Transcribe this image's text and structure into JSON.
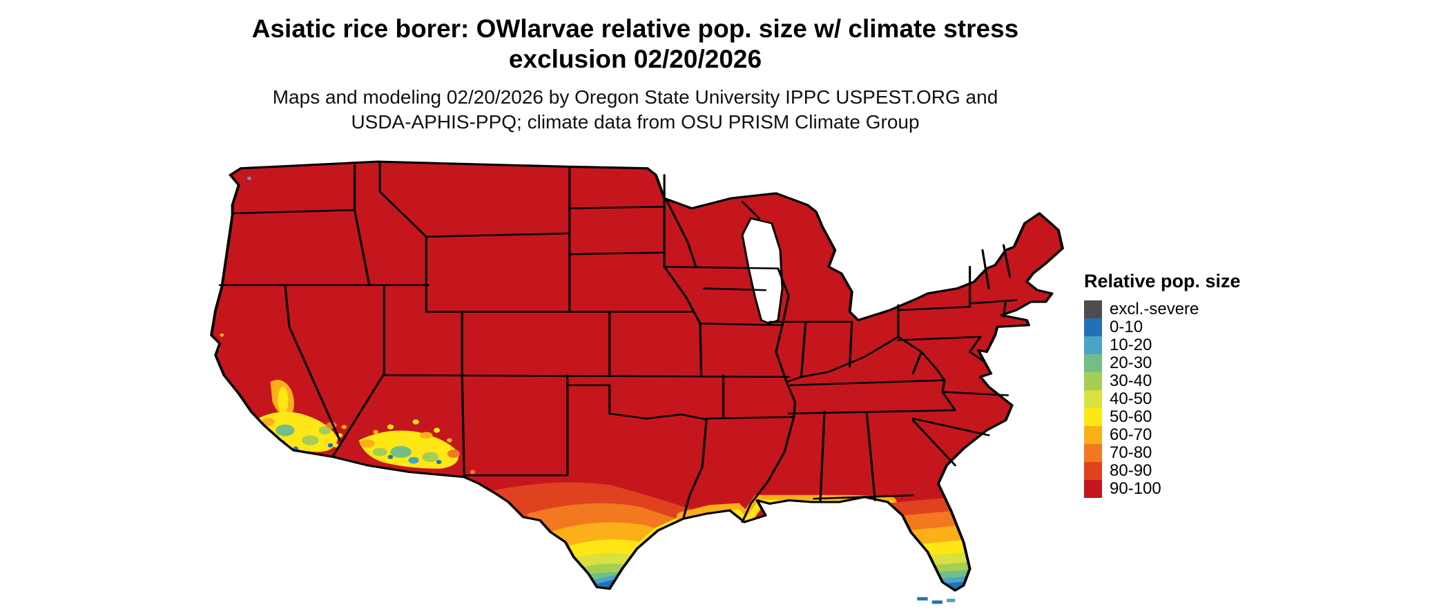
{
  "header": {
    "title_line1": "Asiatic rice borer: OWlarvae relative pop. size w/ climate stress",
    "title_line2": "exclusion 02/20/2026",
    "subtitle_line1": "Maps and modeling 02/20/2026 by Oregon State University IPPC USPEST.ORG and",
    "subtitle_line2": "USDA-APHIS-PPQ; climate data from OSU PRISM Climate Group"
  },
  "legend": {
    "title": "Relative pop. size",
    "entries": [
      {
        "key": "excl",
        "label": "excl.-severe",
        "color": "#4D4D4D"
      },
      {
        "key": "b0010",
        "label": "0-10",
        "color": "#2171B5"
      },
      {
        "key": "b1020",
        "label": "10-20",
        "color": "#4BA3C7"
      },
      {
        "key": "b2030",
        "label": "20-30",
        "color": "#71BF87"
      },
      {
        "key": "b3040",
        "label": "30-40",
        "color": "#A6CE54"
      },
      {
        "key": "b4050",
        "label": "40-50",
        "color": "#D8E140"
      },
      {
        "key": "b5060",
        "label": "50-60",
        "color": "#FFE715"
      },
      {
        "key": "b6070",
        "label": "60-70",
        "color": "#FBAF18"
      },
      {
        "key": "b7080",
        "label": "70-80",
        "color": "#F2791F"
      },
      {
        "key": "b8090",
        "label": "80-90",
        "color": "#E0421F"
      },
      {
        "key": "b90100",
        "label": "90-100",
        "color": "#C5161D"
      }
    ]
  },
  "map": {
    "region": "Continental United States",
    "type": "raster choropleth of relative population size",
    "dominant_class": "90-100",
    "low_value_areas": "southern Texas tip, southern Florida, Gulf Coast strip, southern Arizona, southern California"
  }
}
